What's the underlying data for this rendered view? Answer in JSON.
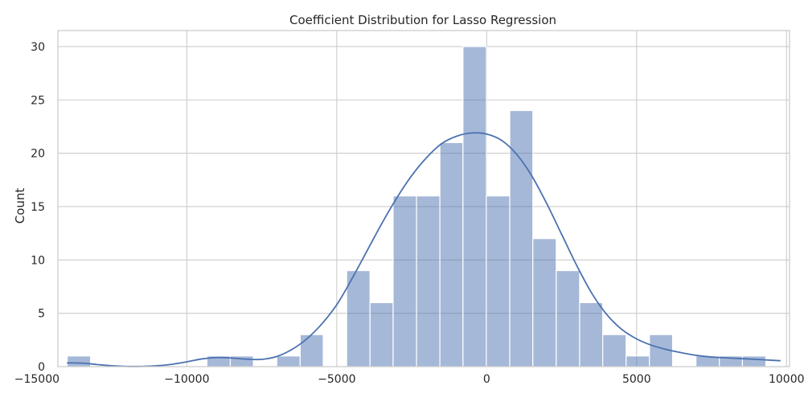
{
  "chart_data": {
    "type": "bar",
    "title": "Coefficient Distribution for Lasso Regression",
    "xlabel": "",
    "ylabel": "Count",
    "xlim": [
      -14300,
      10100
    ],
    "ylim": [
      0,
      31.5
    ],
    "xticks": [
      -15000,
      -10000,
      -5000,
      0,
      5000,
      10000
    ],
    "xtick_labels": [
      "−15000",
      "−10000",
      "−5000",
      "0",
      "5000",
      "10000"
    ],
    "yticks": [
      0,
      5,
      10,
      15,
      20,
      25,
      30
    ],
    "ytick_labels": [
      "0",
      "5",
      "10",
      "15",
      "20",
      "25",
      "30"
    ],
    "grid": true,
    "bins": [
      {
        "x0": -13990,
        "x1": -13210,
        "count": 1
      },
      {
        "x0": -13210,
        "x1": -12440,
        "count": 0
      },
      {
        "x0": -12440,
        "x1": -11660,
        "count": 0
      },
      {
        "x0": -11660,
        "x1": -10880,
        "count": 0
      },
      {
        "x0": -10880,
        "x1": -10110,
        "count": 0
      },
      {
        "x0": -10110,
        "x1": -9330,
        "count": 0
      },
      {
        "x0": -9330,
        "x1": -8550,
        "count": 1
      },
      {
        "x0": -8550,
        "x1": -7780,
        "count": 1
      },
      {
        "x0": -7780,
        "x1": -7000,
        "count": 0
      },
      {
        "x0": -7000,
        "x1": -6220,
        "count": 1
      },
      {
        "x0": -6220,
        "x1": -5450,
        "count": 3
      },
      {
        "x0": -5450,
        "x1": -4670,
        "count": 0
      },
      {
        "x0": -4670,
        "x1": -3890,
        "count": 9
      },
      {
        "x0": -3890,
        "x1": -3120,
        "count": 6
      },
      {
        "x0": -3120,
        "x1": -2340,
        "count": 16
      },
      {
        "x0": -2340,
        "x1": -1560,
        "count": 16
      },
      {
        "x0": -1560,
        "x1": -790,
        "count": 21
      },
      {
        "x0": -790,
        "x1": -10,
        "count": 30
      },
      {
        "x0": -10,
        "x1": 770,
        "count": 16
      },
      {
        "x0": 770,
        "x1": 1540,
        "count": 24
      },
      {
        "x0": 1540,
        "x1": 2320,
        "count": 12
      },
      {
        "x0": 2320,
        "x1": 3100,
        "count": 9
      },
      {
        "x0": 3100,
        "x1": 3870,
        "count": 6
      },
      {
        "x0": 3870,
        "x1": 4650,
        "count": 3
      },
      {
        "x0": 4650,
        "x1": 5430,
        "count": 1
      },
      {
        "x0": 5430,
        "x1": 6200,
        "count": 3
      },
      {
        "x0": 6200,
        "x1": 6980,
        "count": 0
      },
      {
        "x0": 6980,
        "x1": 7760,
        "count": 1
      },
      {
        "x0": 7760,
        "x1": 8530,
        "count": 1
      },
      {
        "x0": 8530,
        "x1": 9310,
        "count": 1
      }
    ],
    "kde": {
      "x": [
        -14000,
        -13500,
        -13000,
        -12500,
        -12000,
        -11500,
        -11000,
        -10500,
        -10000,
        -9500,
        -9000,
        -8500,
        -8000,
        -7500,
        -7000,
        -6500,
        -6000,
        -5500,
        -5000,
        -4500,
        -4000,
        -3500,
        -3000,
        -2500,
        -2000,
        -1500,
        -1000,
        -500,
        0,
        500,
        1000,
        1500,
        2000,
        2500,
        3000,
        3500,
        4000,
        4500,
        5000,
        5500,
        6000,
        6500,
        7000,
        7500,
        8000,
        8500,
        9000,
        9500,
        9800
      ],
      "y": [
        0.35,
        0.33,
        0.2,
        0.08,
        0.02,
        0.02,
        0.08,
        0.22,
        0.45,
        0.72,
        0.85,
        0.8,
        0.7,
        0.68,
        0.95,
        1.6,
        2.6,
        4.0,
        5.8,
        8.2,
        10.8,
        13.4,
        15.8,
        17.9,
        19.6,
        20.9,
        21.6,
        21.9,
        21.8,
        21.2,
        19.9,
        17.9,
        15.3,
        12.4,
        9.5,
        6.9,
        4.9,
        3.5,
        2.6,
        2.0,
        1.6,
        1.3,
        1.05,
        0.9,
        0.82,
        0.75,
        0.68,
        0.6,
        0.55
      ]
    },
    "bar_color": "#4c72b0",
    "bar_opacity": 0.5,
    "line_color": "#4c72b0",
    "grid_color": "#cccccc",
    "spine_color": "#cccccc"
  }
}
